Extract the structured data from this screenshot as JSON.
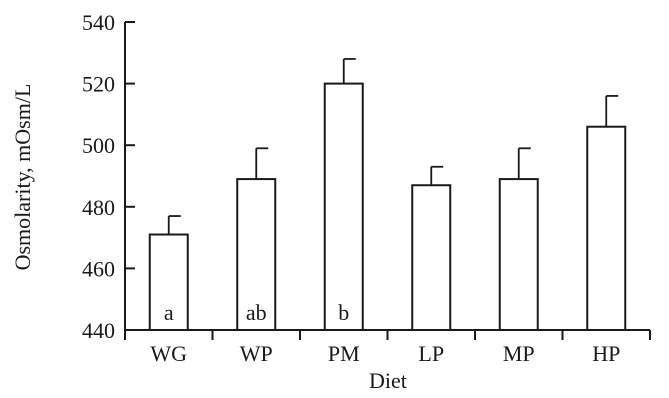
{
  "chart_data": {
    "type": "bar",
    "title": "",
    "xlabel": "Diet",
    "ylabel": "Osmolarity, mOsm/L",
    "categories": [
      "WG",
      "WP",
      "PM",
      "LP",
      "MP",
      "HP"
    ],
    "values": [
      471,
      489,
      520,
      487,
      489,
      506
    ],
    "error_upper": [
      477,
      499,
      528,
      493,
      499,
      516
    ],
    "bar_labels": [
      "a",
      "ab",
      "b",
      "",
      "",
      ""
    ],
    "ylim": [
      440,
      540
    ],
    "yticks": [
      440,
      460,
      480,
      500,
      520,
      540
    ],
    "grid": false,
    "legend": "none",
    "colors": {
      "bar_fill": "#ffffff",
      "stroke": "#1a1a1a"
    }
  }
}
